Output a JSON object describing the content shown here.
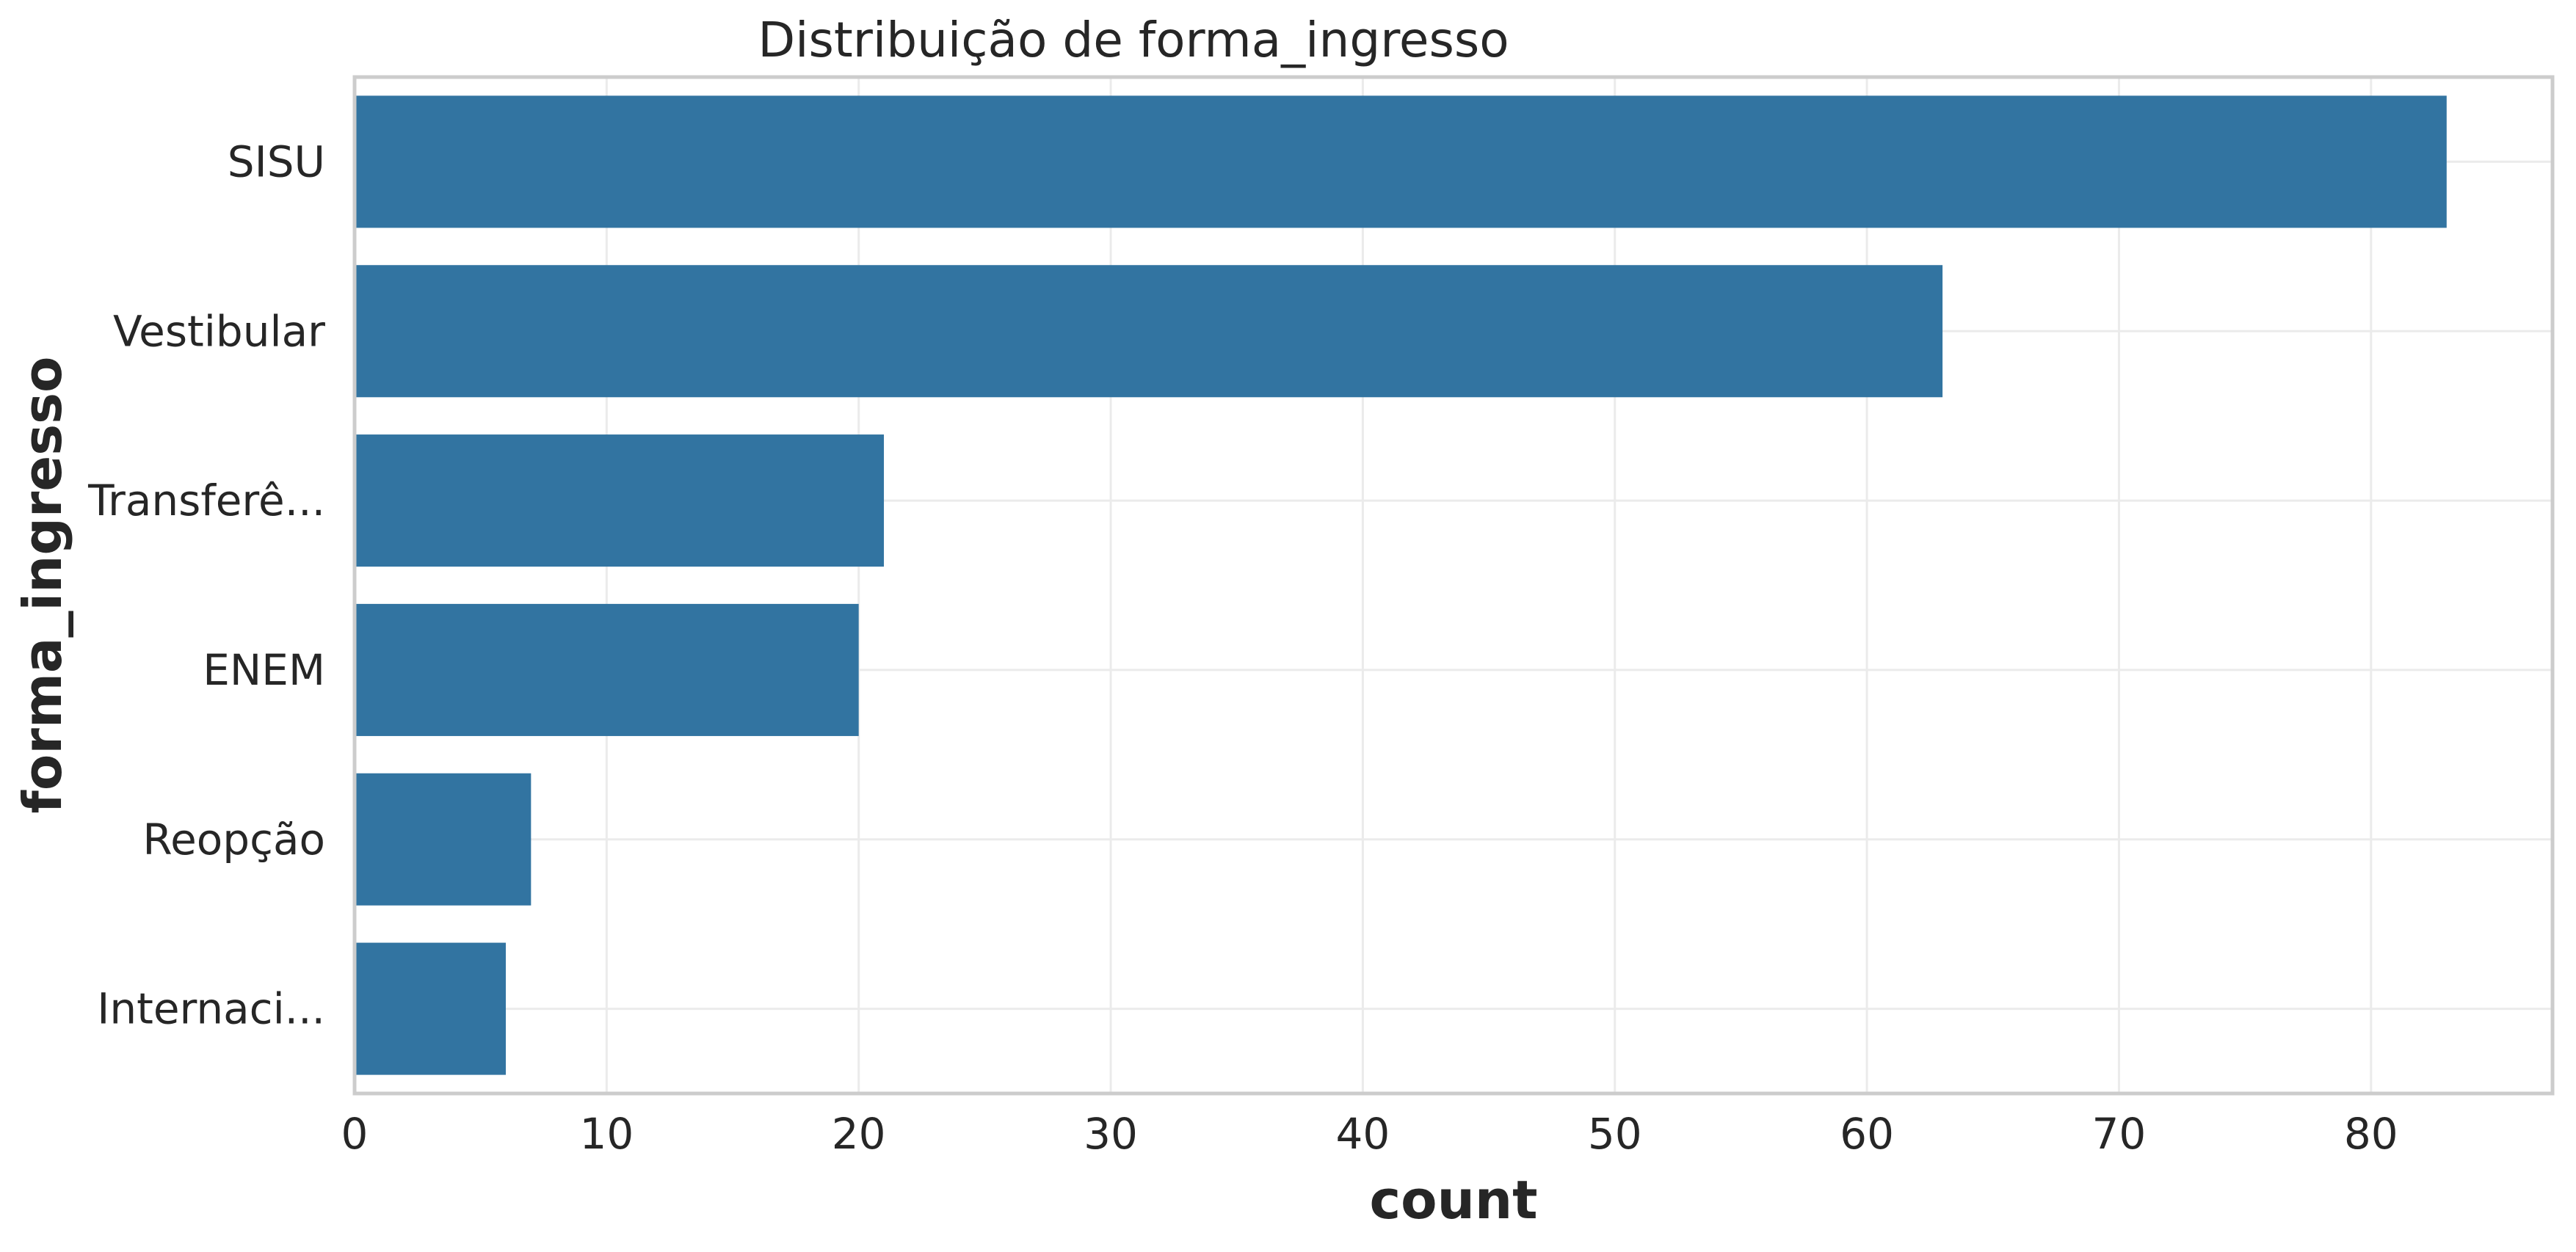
{
  "chart_data": {
    "type": "bar",
    "orientation": "horizontal",
    "title": "Distribuição de forma_ingresso",
    "xlabel": "count",
    "ylabel": "forma_ingresso",
    "categories": [
      "SISU",
      "Vestibular",
      "Transferê...",
      "ENEM",
      "Reopção",
      "Internaci..."
    ],
    "values": [
      83,
      63,
      21,
      20,
      7,
      6
    ],
    "xlim": [
      0,
      87.2
    ],
    "xticks": [
      0,
      10,
      20,
      30,
      40,
      50,
      60,
      70,
      80
    ],
    "grid": true,
    "bar_color": "#3274a1"
  }
}
